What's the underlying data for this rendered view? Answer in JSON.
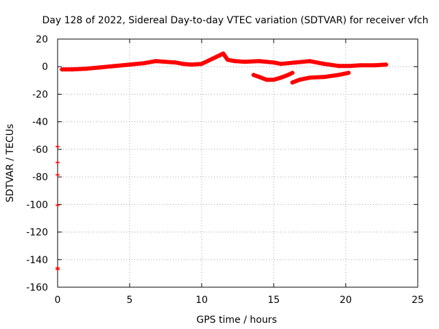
{
  "chart_data": {
    "type": "scatter",
    "title": "Day 128 of 2022, Sidereal Day-to-day VTEC variation (SDTVAR) for receiver vfch",
    "xlabel": "GPS time / hours",
    "ylabel": "SDTVAR / TECUs",
    "xlim": [
      0,
      25
    ],
    "ylim": [
      -160,
      20
    ],
    "xticks": [
      0,
      5,
      10,
      15,
      20,
      25
    ],
    "yticks": [
      20,
      0,
      -20,
      -40,
      -60,
      -80,
      -100,
      -120,
      -140,
      -160
    ],
    "grid": true,
    "marker_color": "#ff0000",
    "series": [
      {
        "name": "main trace",
        "x": [
          0.3,
          1.0,
          2.0,
          3.0,
          4.0,
          5.0,
          6.0,
          6.8,
          7.5,
          8.2,
          8.7,
          9.3,
          10.0,
          10.5,
          11.0,
          11.5,
          11.8,
          12.3,
          13.0,
          14.0,
          14.5,
          15.0,
          15.5,
          16.5,
          17.5,
          18.5,
          19.5,
          20.3,
          21.0,
          22.0,
          22.8
        ],
        "y": [
          -2,
          -2,
          -1.5,
          -0.5,
          0.5,
          1.5,
          2.5,
          4,
          3.5,
          3,
          2,
          1.5,
          2,
          4.5,
          7,
          9.5,
          5,
          4,
          3.5,
          4,
          3.5,
          3,
          2,
          3,
          4,
          2,
          0.5,
          0.5,
          1,
          1,
          1.5
        ]
      },
      {
        "name": "lower arc 1",
        "x": [
          13.6,
          14.0,
          14.5,
          15.0,
          15.5,
          16.0,
          16.3
        ],
        "y": [
          -6,
          -7.5,
          -9.5,
          -9.5,
          -8,
          -6,
          -4.5
        ]
      },
      {
        "name": "lower arc 2",
        "x": [
          16.3,
          16.8,
          17.5,
          18.5,
          19.5,
          20.2
        ],
        "y": [
          -11.5,
          -9.5,
          -8,
          -7.5,
          -6,
          -4.5
        ]
      },
      {
        "name": "outliers near x=0",
        "x": [
          0.0,
          0.0,
          0.0,
          0.0,
          0.0,
          0.0
        ],
        "y": [
          -58,
          -69.5,
          -78.5,
          -100.5,
          -146,
          -147
        ]
      }
    ]
  }
}
